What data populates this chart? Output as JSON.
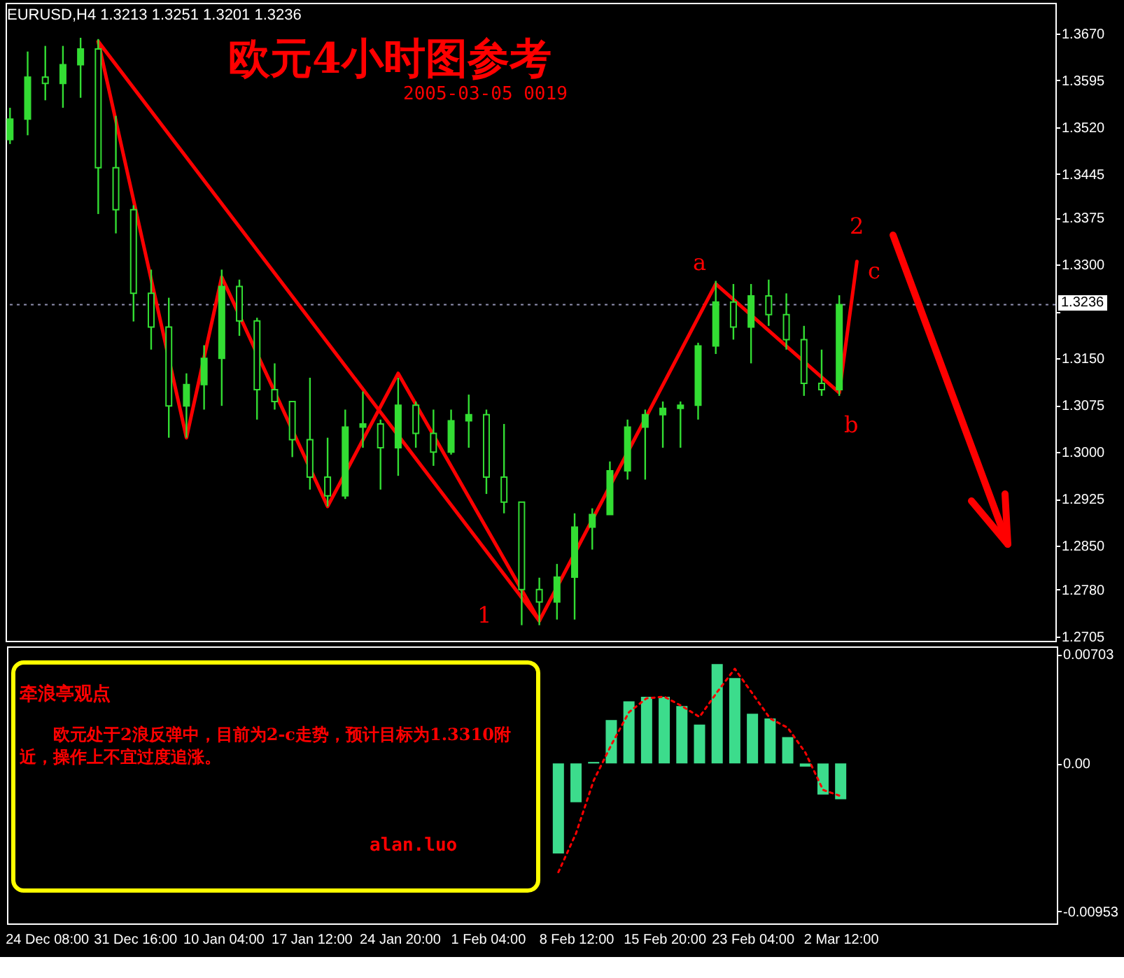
{
  "chart_data": [
    {
      "type": "candlestick",
      "title": "欧元4小时图参考",
      "subtitle": "2005-03-05 0019",
      "color": "#33dd33",
      "categories": [
        null,
        null,
        null,
        null,
        null,
        null,
        null,
        null,
        null,
        null,
        null,
        null,
        null,
        null,
        null,
        null,
        null,
        null,
        null,
        null,
        null,
        null,
        null,
        null,
        null,
        null,
        null,
        null,
        null,
        null,
        null,
        null,
        null,
        null,
        null,
        null,
        null,
        null,
        null,
        null,
        null,
        null,
        null,
        null,
        null,
        null,
        null,
        null,
        null,
        null,
        null,
        null,
        null,
        null,
        null,
        null,
        null,
        null,
        null,
        null
      ],
      "ohlc": [
        [
          1.35,
          1.3551,
          1.3493,
          1.3533
        ],
        [
          1.3533,
          1.3641,
          1.3507,
          1.36
        ],
        [
          1.36,
          1.365,
          1.3563,
          1.359
        ],
        [
          1.359,
          1.365,
          1.3551,
          1.362
        ],
        [
          1.362,
          1.3663,
          1.3567,
          1.3645
        ],
        [
          1.3645,
          1.3661,
          1.3381,
          1.3455
        ],
        [
          1.3455,
          1.3538,
          1.335,
          1.3388
        ],
        [
          1.3388,
          1.3395,
          1.3209,
          1.3254
        ],
        [
          1.3254,
          1.3292,
          1.3164,
          1.32
        ],
        [
          1.32,
          1.3247,
          1.3023,
          1.3074
        ],
        [
          1.3074,
          1.3126,
          1.3023,
          1.3108
        ],
        [
          1.3108,
          1.3171,
          1.3068,
          1.315
        ],
        [
          1.315,
          1.3292,
          1.3074,
          1.3265
        ],
        [
          1.3265,
          1.3276,
          1.3186,
          1.321
        ],
        [
          1.321,
          1.3215,
          1.3052,
          1.31
        ],
        [
          1.31,
          1.3142,
          1.3068,
          1.3081
        ],
        [
          1.3081,
          1.3081,
          1.2992,
          1.302
        ],
        [
          1.302,
          1.3119,
          1.294,
          1.296
        ],
        [
          1.296,
          1.3023,
          1.2913,
          1.293
        ],
        [
          1.293,
          1.3068,
          1.2925,
          1.304
        ],
        [
          1.304,
          1.3097,
          1.3007,
          1.3045
        ],
        [
          1.3045,
          1.3052,
          1.294,
          1.3007
        ],
        [
          1.3007,
          1.3119,
          1.2962,
          1.3075
        ],
        [
          1.3075,
          1.3081,
          1.3007,
          1.303
        ],
        [
          1.303,
          1.3068,
          1.2978,
          1.3
        ],
        [
          1.3,
          1.3068,
          1.2996,
          1.305
        ],
        [
          1.305,
          1.3092,
          1.3007,
          1.306
        ],
        [
          1.306,
          1.3068,
          1.2933,
          1.296
        ],
        [
          1.296,
          1.3045,
          1.2902,
          1.292
        ],
        [
          1.292,
          1.292,
          1.2723,
          1.278
        ],
        [
          1.278,
          1.2799,
          1.2723,
          1.276
        ],
        [
          1.276,
          1.2821,
          1.2732,
          1.28
        ],
        [
          1.28,
          1.2902,
          1.2732,
          1.288
        ],
        [
          1.288,
          1.291,
          1.2844,
          1.29
        ],
        [
          1.29,
          1.2985,
          1.29,
          1.297
        ],
        [
          1.297,
          1.3052,
          1.2956,
          1.304
        ],
        [
          1.304,
          1.3068,
          1.2956,
          1.306
        ],
        [
          1.306,
          1.3081,
          1.3007,
          1.307
        ],
        [
          1.307,
          1.3081,
          1.3007,
          1.3075
        ],
        [
          1.3075,
          1.3175,
          1.3052,
          1.317
        ],
        [
          1.317,
          1.3274,
          1.3157,
          1.324
        ],
        [
          1.324,
          1.3269,
          1.318,
          1.32
        ],
        [
          1.32,
          1.3269,
          1.3142,
          1.325
        ],
        [
          1.325,
          1.3276,
          1.3202,
          1.322
        ],
        [
          1.322,
          1.3254,
          1.3164,
          1.318
        ],
        [
          1.318,
          1.3202,
          1.309,
          1.311
        ],
        [
          1.311,
          1.3164,
          1.309,
          1.31
        ],
        [
          1.31,
          1.3251,
          1.309,
          1.3236
        ],
        null,
        null,
        null,
        null,
        null,
        null,
        null,
        null,
        null,
        null,
        null,
        null
      ],
      "series": [
        {
          "type": "line",
          "color": "#ff0000",
          "values": [
            null,
            null,
            null,
            null,
            null,
            1.3657,
            null,
            null,
            null,
            null,
            null,
            null,
            null,
            null,
            null,
            null,
            null,
            null,
            null,
            null,
            null,
            null,
            null,
            null,
            null,
            null,
            null,
            null,
            null,
            null,
            1.273,
            null,
            null,
            null,
            null,
            null,
            null,
            null,
            null,
            null,
            1.3269,
            null,
            null,
            null,
            null,
            null,
            null,
            1.3095,
            1.3305,
            null,
            null,
            null,
            null,
            null,
            null,
            null,
            null,
            null,
            null,
            null
          ]
        },
        {
          "type": "line",
          "color": "#ff0000",
          "values": [
            null,
            null,
            null,
            null,
            null,
            1.3657,
            null,
            null,
            null,
            null,
            1.3023,
            null,
            1.328,
            null,
            null,
            null,
            null,
            null,
            1.2913,
            null,
            null,
            null,
            1.3126,
            null,
            null,
            null,
            null,
            null,
            null,
            null,
            1.273,
            null,
            null,
            null,
            null,
            null,
            null,
            null,
            null,
            null,
            null,
            null,
            null,
            null,
            null,
            null,
            null,
            null,
            null,
            null,
            null,
            null,
            null,
            null,
            null,
            null,
            null,
            null,
            null,
            null
          ]
        }
      ],
      "ylim": [
        1.2698,
        1.3719
      ],
      "yticks": [
        {
          "value": 1.367,
          "label": "1.3670"
        },
        1.3595,
        {
          "value": 1.352,
          "label": "1.3520"
        },
        1.3445,
        1.3375,
        {
          "value": 1.33,
          "label": "1.3300"
        },
        {
          "value": 1.3225,
          "label": null
        },
        {
          "value": 1.315,
          "label": "1.3150"
        },
        1.3075,
        {
          "value": 1.3,
          "label": "1.3000"
        },
        1.2925,
        {
          "value": 1.285,
          "label": "1.2850"
        },
        {
          "value": 1.278,
          "label": "1.2780"
        },
        1.2705
      ],
      "tick_labels": "y",
      "ref_lines": [
        {
          "axis": "y",
          "value": 1.3236,
          "label": "1.3236",
          "color": "#9090b0",
          "line_style": "dotted"
        }
      ],
      "annotations": [
        "EURUSD,H4  1.3213 1.3251 1.3201 1.3236",
        "牵浪亭观点",
        "欧元处于2浪反弹中，目前为2-c走势，预计目标为1.3310附近，操作上不宜过度追涨。",
        "alan.luo",
        "1",
        "a",
        "2",
        "b",
        "c"
      ]
    },
    {
      "type": "bar",
      "categories": [
        null,
        null,
        "24 Dec 08:00",
        null,
        null,
        null,
        null,
        "31 Dec 16:00",
        null,
        null,
        null,
        null,
        "10 Jan 04:00",
        null,
        null,
        null,
        null,
        "17 Jan 12:00",
        null,
        null,
        null,
        null,
        "24 Jan 20:00",
        null,
        null,
        null,
        null,
        "1 Feb 04:00",
        null,
        null,
        null,
        null,
        "8 Feb 12:00",
        null,
        null,
        null,
        null,
        "15 Feb 20:00",
        null,
        null,
        null,
        null,
        "23 Feb 04:00",
        null,
        null,
        null,
        null,
        "2 Mar 12:00",
        null,
        null,
        null,
        null,
        null,
        null,
        null,
        null,
        null,
        null,
        null,
        null
      ],
      "series": [
        {
          "type": "bar",
          "color": "#3cdc8c",
          "values": [
            null,
            null,
            null,
            null,
            null,
            null,
            null,
            null,
            null,
            null,
            null,
            null,
            null,
            null,
            null,
            null,
            null,
            null,
            null,
            null,
            null,
            null,
            null,
            null,
            null,
            null,
            null,
            null,
            null,
            null,
            null,
            -0.0058,
            -0.0025,
            0.0001,
            0.0028,
            0.004,
            0.0043,
            0.0043,
            0.0037,
            0.0025,
            0.0064,
            0.0055,
            0.0032,
            0.0029,
            0.0017,
            -0.0002,
            -0.002,
            -0.0023,
            null,
            null,
            null,
            null,
            null,
            null,
            null,
            null,
            null,
            null,
            null,
            null
          ]
        },
        {
          "type": "line",
          "color": "#ff0000",
          "line_style": "dotted",
          "values": [
            null,
            null,
            null,
            null,
            null,
            null,
            null,
            null,
            null,
            null,
            null,
            null,
            null,
            null,
            null,
            null,
            null,
            null,
            null,
            null,
            null,
            null,
            null,
            null,
            null,
            null,
            null,
            null,
            null,
            null,
            null,
            -0.007,
            -0.0045,
            -0.0011,
            0.0012,
            0.0033,
            0.0042,
            0.0043,
            0.0037,
            0.003,
            0.0046,
            0.0061,
            0.0045,
            0.0029,
            0.0023,
            0.0007,
            -0.0017,
            -0.0021,
            null,
            null,
            null,
            null,
            null,
            null,
            null,
            null,
            null,
            null,
            null,
            null
          ]
        }
      ],
      "ylim": [
        -0.0103,
        0.00754
      ],
      "yticks": [
        0.00703,
        {
          "value": 0,
          "label": "0.00"
        },
        -0.00953
      ]
    }
  ]
}
